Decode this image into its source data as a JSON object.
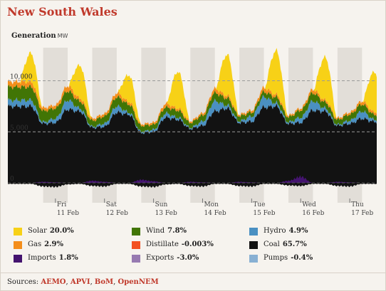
{
  "title": "New South Wales",
  "chart_data": {
    "type": "area",
    "title": "Generation",
    "unit": "MW",
    "y_ticks": [
      {
        "value": 10000,
        "label": "10,000"
      },
      {
        "value": 5000,
        "label": "5,000"
      },
      {
        "value": 0,
        "label": "0"
      }
    ],
    "ylim": [
      -900,
      12500
    ],
    "x_ticks": [
      {
        "day": 1,
        "label1": "Fri",
        "label2": "11 Feb"
      },
      {
        "day": 2,
        "label1": "Sat",
        "label2": "12 Feb"
      },
      {
        "day": 3,
        "label1": "Sun",
        "label2": "13 Feb"
      },
      {
        "day": 4,
        "label1": "Mon",
        "label2": "14 Feb"
      },
      {
        "day": 5,
        "label1": "Tue",
        "label2": "15 Feb"
      },
      {
        "day": 6,
        "label1": "Wed",
        "label2": "16 Feb"
      },
      {
        "day": 7,
        "label1": "Thu",
        "label2": "17 Feb"
      }
    ],
    "night_shading": true,
    "x_range_days": [
      0.03,
      7.55
    ],
    "stack_order": [
      "Coal",
      "Hydro",
      "Wind",
      "Gas",
      "Solar"
    ],
    "series_samples": {
      "note_units": "MW, sampled every 6 hours starting Thu 10 Feb 12:00",
      "Coal": [
        7500,
        5800,
        5900,
        7200,
        7000,
        5400,
        5500,
        6900,
        6700,
        4900,
        5000,
        6400,
        6200,
        5300,
        5600,
        7000,
        7300,
        5900,
        6000,
        7400,
        7500,
        5800,
        5900,
        7100,
        7000,
        5600,
        5800,
        6300,
        6000,
        5700
      ],
      "Hydro": [
        600,
        150,
        400,
        900,
        300,
        100,
        300,
        600,
        200,
        100,
        200,
        400,
        200,
        100,
        400,
        1000,
        300,
        150,
        500,
        1000,
        300,
        150,
        500,
        900,
        300,
        100,
        300,
        700,
        200,
        150
      ],
      "Wind": [
        1300,
        1100,
        1000,
        900,
        700,
        600,
        700,
        900,
        800,
        600,
        500,
        600,
        700,
        500,
        600,
        800,
        700,
        500,
        400,
        500,
        600,
        500,
        700,
        800,
        600,
        500,
        600,
        700,
        500,
        400
      ],
      "Gas": [
        500,
        300,
        300,
        500,
        300,
        200,
        250,
        400,
        250,
        150,
        200,
        350,
        200,
        150,
        200,
        400,
        250,
        150,
        200,
        400,
        250,
        150,
        200,
        350,
        200,
        150,
        200,
        300,
        250,
        200
      ],
      "Solar": [
        0,
        0,
        0,
        3000,
        0,
        0,
        0,
        3200,
        0,
        0,
        0,
        3500,
        0,
        0,
        0,
        3000,
        0,
        0,
        0,
        3100,
        0,
        0,
        0,
        3400,
        0,
        0,
        0,
        3300,
        0,
        0
      ],
      "Imports": [
        0,
        100,
        50,
        0,
        0,
        200,
        100,
        0,
        0,
        300,
        150,
        0,
        0,
        100,
        50,
        0,
        0,
        100,
        50,
        0,
        0,
        200,
        600,
        0,
        0,
        100,
        50,
        0,
        0,
        50
      ],
      "Exports": [
        -100,
        -350,
        -400,
        -150,
        -100,
        -300,
        -350,
        -100,
        -100,
        -350,
        -400,
        -150,
        -100,
        -300,
        -350,
        -100,
        -100,
        -300,
        -350,
        -100,
        -100,
        -250,
        -300,
        -100,
        -100,
        -300,
        -350,
        -100,
        -100,
        -250
      ]
    }
  },
  "legend": [
    {
      "name": "Solar",
      "pct": "20.0%",
      "color": "#f7d117"
    },
    {
      "name": "Wind",
      "pct": "7.8%",
      "color": "#417505"
    },
    {
      "name": "Hydro",
      "pct": "4.9%",
      "color": "#4a90c2"
    },
    {
      "name": "Gas",
      "pct": "2.9%",
      "color": "#f48e1b"
    },
    {
      "name": "Distillate",
      "pct": "-0.003%",
      "color": "#f35020"
    },
    {
      "name": "Coal",
      "pct": "65.7%",
      "color": "#121212"
    },
    {
      "name": "Imports",
      "pct": "1.8%",
      "color": "#44146f"
    },
    {
      "name": "Exports",
      "pct": "-3.0%",
      "color": "#977ab1"
    },
    {
      "name": "Pumps",
      "pct": "-0.4%",
      "color": "#88b0d3"
    }
  ],
  "sources": {
    "label": "Sources:",
    "links": [
      "AEMO",
      "APVI",
      "BoM",
      "OpenNEM"
    ]
  }
}
